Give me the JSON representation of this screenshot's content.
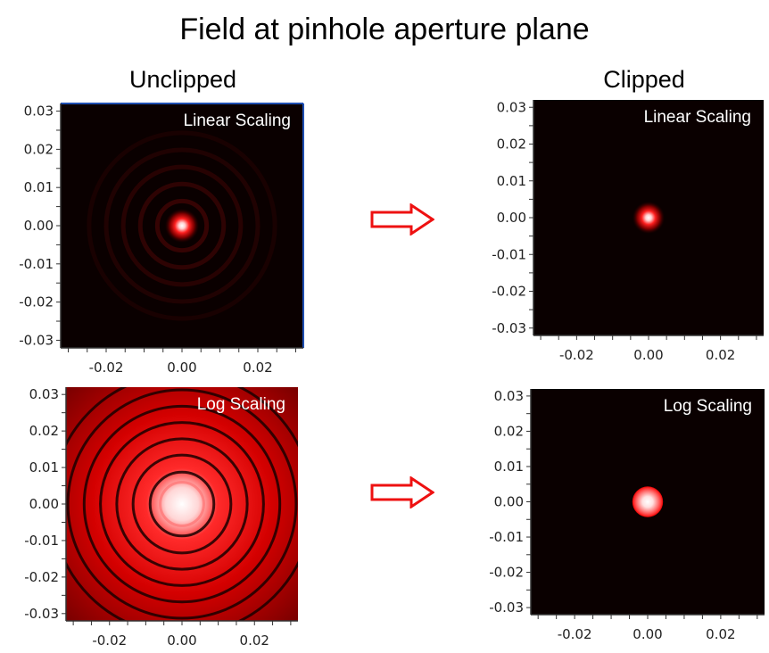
{
  "title": "Field at pinhole aperture plane",
  "columns": {
    "left": "Unclipped",
    "right": "Clipped"
  },
  "colors": {
    "field": "#ff1a1a",
    "background": "#0a0000",
    "arrow": "#ee1111",
    "frame": "#1f4fb3"
  },
  "icons": {
    "arrow": "right-arrow-outline-icon"
  },
  "chart_data": [
    {
      "type": "heatmap",
      "panel": "unclipped-linear",
      "label": "Linear Scaling",
      "scaling": "linear",
      "clipped": false,
      "xlim": [
        -0.032,
        0.032
      ],
      "ylim": [
        -0.032,
        0.032
      ],
      "xticks": [
        "-0.02",
        "0.00",
        "0.02"
      ],
      "yticks": [
        "0.03",
        "0.02",
        "0.01",
        "0.00",
        "-0.01",
        "-0.02",
        "-0.03"
      ],
      "xtick_values": [
        -0.02,
        0.0,
        0.02
      ],
      "ytick_values": [
        0.03,
        0.02,
        0.01,
        0.0,
        -0.01,
        -0.02,
        -0.03
      ],
      "center": [
        0.0,
        0.0
      ]
    },
    {
      "type": "heatmap",
      "panel": "clipped-linear",
      "label": "Linear Scaling",
      "scaling": "linear",
      "clipped": true,
      "xlim": [
        -0.032,
        0.032
      ],
      "ylim": [
        -0.032,
        0.032
      ],
      "xticks": [
        "-0.02",
        "0.00",
        "0.02"
      ],
      "yticks": [
        "0.03",
        "0.02",
        "0.01",
        "0.00",
        "-0.01",
        "-0.02",
        "-0.03"
      ],
      "xtick_values": [
        -0.02,
        0.0,
        0.02
      ],
      "ytick_values": [
        0.03,
        0.02,
        0.01,
        0.0,
        -0.01,
        -0.02,
        -0.03
      ],
      "center": [
        0.0,
        0.0
      ]
    },
    {
      "type": "heatmap",
      "panel": "unclipped-log",
      "label": "Log Scaling",
      "scaling": "log",
      "clipped": false,
      "xlim": [
        -0.032,
        0.032
      ],
      "ylim": [
        -0.032,
        0.032
      ],
      "xticks": [
        "-0.02",
        "0.00",
        "0.02"
      ],
      "yticks": [
        "0.03",
        "0.02",
        "0.01",
        "0.00",
        "-0.01",
        "-0.02",
        "-0.03"
      ],
      "xtick_values": [
        -0.02,
        0.0,
        0.02
      ],
      "ytick_values": [
        0.03,
        0.02,
        0.01,
        0.0,
        -0.01,
        -0.02,
        -0.03
      ],
      "center": [
        0.0,
        0.0
      ]
    },
    {
      "type": "heatmap",
      "panel": "clipped-log",
      "label": "Log Scaling",
      "scaling": "log",
      "clipped": true,
      "xlim": [
        -0.032,
        0.032
      ],
      "ylim": [
        -0.032,
        0.032
      ],
      "xticks": [
        "-0.02",
        "0.00",
        "0.02"
      ],
      "yticks": [
        "0.03",
        "0.02",
        "0.01",
        "0.00",
        "-0.01",
        "-0.02",
        "-0.03"
      ],
      "xtick_values": [
        -0.02,
        0.0,
        0.02
      ],
      "ytick_values": [
        0.03,
        0.02,
        0.01,
        0.0,
        -0.01,
        -0.02,
        -0.03
      ],
      "center": [
        0.0,
        0.0
      ]
    }
  ]
}
